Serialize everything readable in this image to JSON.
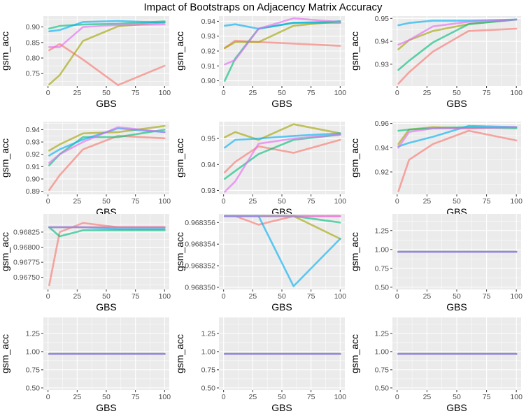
{
  "title": "Impact of Bootstraps on Adjacency Matrix Accuracy",
  "colors": {
    "panel_bg": "#EBEBEB",
    "grid": "#FFFFFF",
    "axis_text": "#4D4D4D",
    "series_red": "#F8766D",
    "series_olive": "#A3A500",
    "series_green": "#00BF7D",
    "series_blue": "#00B0F6",
    "series_purple": "#E76BF3"
  },
  "chart_data": [
    {
      "type": "line",
      "xlabel": "GBS",
      "ylabel": "gsm_acc",
      "xlim": [
        -4,
        104
      ],
      "ylim": [
        0.71,
        0.935
      ],
      "xticks": [
        0,
        25,
        50,
        75,
        100
      ],
      "yticks": [
        0.75,
        0.8,
        0.85,
        0.9
      ],
      "ytick_labels": [
        "0.75",
        "0.80",
        "0.85",
        "0.90"
      ],
      "x": [
        1,
        10,
        30,
        60,
        100
      ],
      "series": [
        {
          "color": "#F8766D",
          "values": [
            0.825,
            0.845,
            0.795,
            0.713,
            0.775
          ]
        },
        {
          "color": "#A3A500",
          "values": [
            0.715,
            0.745,
            0.855,
            0.902,
            0.915
          ]
        },
        {
          "color": "#00BF7D",
          "values": [
            0.895,
            0.903,
            0.908,
            0.91,
            0.918
          ]
        },
        {
          "color": "#00B0F6",
          "values": [
            0.886,
            0.89,
            0.916,
            0.919,
            0.914
          ]
        },
        {
          "color": "#E76BF3",
          "values": [
            0.835,
            0.835,
            0.9,
            0.906,
            0.908
          ]
        }
      ]
    },
    {
      "type": "line",
      "xlabel": "GBS",
      "ylabel": "gsm_acc",
      "xlim": [
        -4,
        104
      ],
      "ylim": [
        0.8965,
        0.9435
      ],
      "xticks": [
        0,
        25,
        50,
        75,
        100
      ],
      "yticks": [
        0.9,
        0.91,
        0.92,
        0.93,
        0.94
      ],
      "ytick_labels": [
        "0.90",
        "0.91",
        "0.92",
        "0.93",
        "0.94"
      ],
      "x": [
        1,
        10,
        30,
        60,
        100
      ],
      "series": [
        {
          "color": "#F8766D",
          "values": [
            0.922,
            0.927,
            0.926,
            0.925,
            0.9235
          ]
        },
        {
          "color": "#A3A500",
          "values": [
            0.922,
            0.926,
            0.926,
            0.937,
            0.94
          ]
        },
        {
          "color": "#00BF7D",
          "values": [
            0.9,
            0.915,
            0.935,
            0.939,
            0.939
          ]
        },
        {
          "color": "#00B0F6",
          "values": [
            0.937,
            0.938,
            0.935,
            0.939,
            0.94
          ]
        },
        {
          "color": "#E76BF3",
          "values": [
            0.911,
            0.914,
            0.935,
            0.942,
            0.9395
          ]
        }
      ]
    },
    {
      "type": "line",
      "xlabel": "GBS",
      "ylabel": "gsm_acc",
      "xlim": [
        -4,
        104
      ],
      "ylim": [
        0.9205,
        0.951
      ],
      "xticks": [
        0,
        25,
        50,
        75,
        100
      ],
      "yticks": [
        0.93,
        0.94,
        0.95
      ],
      "ytick_labels": [
        "0.93",
        "0.94",
        "0.95"
      ],
      "x": [
        1,
        10,
        30,
        60,
        100
      ],
      "series": [
        {
          "color": "#F8766D",
          "values": [
            0.9215,
            0.9265,
            0.9355,
            0.9445,
            0.9455
          ]
        },
        {
          "color": "#A3A500",
          "values": [
            0.9365,
            0.9405,
            0.9445,
            0.9475,
            0.9495
          ]
        },
        {
          "color": "#00BF7D",
          "values": [
            0.9275,
            0.9315,
            0.9395,
            0.9475,
            0.9495
          ]
        },
        {
          "color": "#00B0F6",
          "values": [
            0.947,
            0.948,
            0.949,
            0.949,
            0.9495
          ]
        },
        {
          "color": "#E76BF3",
          "values": [
            0.9385,
            0.9405,
            0.9465,
            0.9485,
            0.9495
          ]
        }
      ]
    },
    {
      "type": "line",
      "xlabel": "GBS",
      "ylabel": "gsm_acc",
      "xlim": [
        -4,
        104
      ],
      "ylim": [
        0.8875,
        0.9465
      ],
      "xticks": [
        0,
        25,
        50,
        75,
        100
      ],
      "yticks": [
        0.89,
        0.9,
        0.91,
        0.92,
        0.93,
        0.94
      ],
      "ytick_labels": [
        "0.89",
        "0.90",
        "0.91",
        "0.92",
        "0.93",
        "0.94"
      ],
      "x": [
        1,
        10,
        30,
        60,
        100
      ],
      "series": [
        {
          "color": "#F8766D",
          "values": [
            0.891,
            0.903,
            0.924,
            0.935,
            0.933
          ]
        },
        {
          "color": "#A3A500",
          "values": [
            0.923,
            0.928,
            0.937,
            0.938,
            0.943
          ]
        },
        {
          "color": "#00BF7D",
          "values": [
            0.911,
            0.92,
            0.934,
            0.934,
            0.94
          ]
        },
        {
          "color": "#00B0F6",
          "values": [
            0.919,
            0.924,
            0.932,
            0.941,
            0.938
          ]
        },
        {
          "color": "#E76BF3",
          "values": [
            0.913,
            0.92,
            0.93,
            0.942,
            0.938
          ]
        }
      ]
    },
    {
      "type": "line",
      "xlabel": "GBS",
      "ylabel": "gsm_acc",
      "xlim": [
        -4,
        104
      ],
      "ylim": [
        0.9285,
        0.9565
      ],
      "xticks": [
        0,
        25,
        50,
        75,
        100
      ],
      "yticks": [
        0.93,
        0.94,
        0.95
      ],
      "ytick_labels": [
        "0.93",
        "0.94",
        "0.95"
      ],
      "x": [
        1,
        10,
        30,
        60,
        100
      ],
      "series": [
        {
          "color": "#F8766D",
          "values": [
            0.937,
            0.941,
            0.947,
            0.9445,
            0.9495
          ]
        },
        {
          "color": "#A3A500",
          "values": [
            0.9505,
            0.9525,
            0.9495,
            0.9555,
            0.952
          ]
        },
        {
          "color": "#00BF7D",
          "values": [
            0.9345,
            0.9375,
            0.944,
            0.9495,
            0.9515
          ]
        },
        {
          "color": "#00B0F6",
          "values": [
            0.9465,
            0.9495,
            0.95,
            0.951,
            0.952
          ]
        },
        {
          "color": "#E76BF3",
          "values": [
            0.9295,
            0.9335,
            0.948,
            0.95,
            0.9515
          ]
        }
      ]
    },
    {
      "type": "line",
      "xlabel": "GBS",
      "ylabel": "gsm_acc",
      "xlim": [
        -4,
        104
      ],
      "ylim": [
        0.9015,
        0.9615
      ],
      "xticks": [
        0,
        25,
        50,
        75,
        100
      ],
      "yticks": [
        0.92,
        0.94,
        0.96
      ],
      "ytick_labels": [
        "0.92",
        "0.94",
        "0.96"
      ],
      "x": [
        1,
        10,
        30,
        60,
        100
      ],
      "series": [
        {
          "color": "#F8766D",
          "values": [
            0.904,
            0.93,
            0.943,
            0.954,
            0.946
          ]
        },
        {
          "color": "#A3A500",
          "values": [
            0.943,
            0.955,
            0.957,
            0.956,
            0.957
          ]
        },
        {
          "color": "#00BF7D",
          "values": [
            0.954,
            0.955,
            0.956,
            0.957,
            0.956
          ]
        },
        {
          "color": "#00B0F6",
          "values": [
            0.941,
            0.944,
            0.949,
            0.958,
            0.957
          ]
        },
        {
          "color": "#E76BF3",
          "values": [
            0.94,
            0.953,
            0.956,
            0.956,
            0.957
          ]
        }
      ]
    },
    {
      "type": "line",
      "xlabel": "GBS",
      "ylabel": "gsm_acc",
      "xlim": [
        -4,
        104
      ],
      "ylim": [
        0.9673,
        0.96855
      ],
      "xticks": [
        0,
        25,
        50,
        75,
        100
      ],
      "yticks": [
        0.9675,
        0.96775,
        0.968,
        0.96825
      ],
      "ytick_labels": [
        "0.96750",
        "0.96775",
        "0.96800",
        "0.96825"
      ],
      "x": [
        1,
        10,
        30,
        60,
        100
      ],
      "series": [
        {
          "color": "#F8766D",
          "values": [
            0.96737,
            0.96825,
            0.9684,
            0.96833,
            0.96833
          ]
        },
        {
          "color": "#A3A500",
          "values": [
            0.96833,
            0.96833,
            0.96833,
            0.96833,
            0.96833
          ]
        },
        {
          "color": "#00BF7D",
          "values": [
            0.96833,
            0.96818,
            0.96828,
            0.96828,
            0.96828
          ]
        },
        {
          "color": "#00B0F6",
          "values": [
            0.96833,
            0.96833,
            0.96833,
            0.9683,
            0.9683
          ]
        },
        {
          "color": "#E76BF3",
          "values": [
            0.96833,
            0.96833,
            0.96833,
            0.96833,
            0.96833
          ]
        }
      ]
    },
    {
      "type": "line",
      "xlabel": "GBS",
      "ylabel": "gsm_acc",
      "xlim": [
        -4,
        104
      ],
      "ylim": [
        0.9683498,
        0.9683568
      ],
      "xticks": [
        0,
        25,
        50,
        75,
        100
      ],
      "yticks": [
        0.96835,
        0.968352,
        0.968354,
        0.968356
      ],
      "ytick_labels": [
        "0.968350",
        "0.968352",
        "0.968354",
        "0.968356"
      ],
      "x": [
        1,
        10,
        30,
        60,
        100
      ],
      "series": [
        {
          "color": "#F8766D",
          "values": [
            0.9683566,
            0.9683566,
            0.9683558,
            0.9683566,
            0.9683566
          ]
        },
        {
          "color": "#A3A500",
          "values": [
            0.9683566,
            0.9683566,
            0.9683566,
            0.9683566,
            0.9683545
          ]
        },
        {
          "color": "#00BF7D",
          "values": [
            0.9683566,
            0.9683566,
            0.9683566,
            0.9683566,
            0.968356
          ]
        },
        {
          "color": "#00B0F6",
          "values": [
            0.9683566,
            0.9683566,
            0.9683566,
            0.9683501,
            0.9683545
          ]
        },
        {
          "color": "#E76BF3",
          "values": [
            0.9683566,
            0.9683566,
            0.9683566,
            0.9683566,
            0.9683566
          ]
        }
      ]
    },
    {
      "type": "line",
      "xlabel": "GBS",
      "ylabel": "gsm_acc",
      "xlim": [
        -4,
        104
      ],
      "ylim": [
        0.47,
        1.47
      ],
      "xticks": [
        0,
        25,
        50,
        75,
        100
      ],
      "yticks": [
        0.5,
        0.75,
        1.0,
        1.25
      ],
      "ytick_labels": [
        "0.50",
        "0.75",
        "1.00",
        "1.25"
      ],
      "x": [
        1,
        10,
        30,
        60,
        100
      ],
      "series": [
        {
          "color": "#F8766D",
          "values": [
            0.968,
            0.968,
            0.968,
            0.968,
            0.968
          ]
        },
        {
          "color": "#A3A500",
          "values": [
            0.968,
            0.968,
            0.968,
            0.968,
            0.968
          ]
        },
        {
          "color": "#00BF7D",
          "values": [
            0.968,
            0.968,
            0.968,
            0.968,
            0.968
          ]
        },
        {
          "color": "#00B0F6",
          "values": [
            0.968,
            0.968,
            0.968,
            0.968,
            0.968
          ]
        },
        {
          "color": "#E76BF3",
          "values": [
            0.968,
            0.968,
            0.968,
            0.968,
            0.968
          ]
        }
      ]
    },
    {
      "type": "line",
      "xlabel": "GBS",
      "ylabel": "gsm_acc",
      "xlim": [
        -4,
        104
      ],
      "ylim": [
        0.47,
        1.47
      ],
      "xticks": [
        0,
        25,
        50,
        75,
        100
      ],
      "yticks": [
        0.5,
        0.75,
        1.0,
        1.25
      ],
      "ytick_labels": [
        "0.50",
        "0.75",
        "1.00",
        "1.25"
      ],
      "x": [
        1,
        10,
        30,
        60,
        100
      ],
      "series": [
        {
          "color": "#F8766D",
          "values": [
            0.968,
            0.968,
            0.968,
            0.968,
            0.968
          ]
        },
        {
          "color": "#A3A500",
          "values": [
            0.968,
            0.968,
            0.968,
            0.968,
            0.968
          ]
        },
        {
          "color": "#00BF7D",
          "values": [
            0.968,
            0.968,
            0.968,
            0.968,
            0.968
          ]
        },
        {
          "color": "#00B0F6",
          "values": [
            0.968,
            0.968,
            0.968,
            0.968,
            0.968
          ]
        },
        {
          "color": "#E76BF3",
          "values": [
            0.968,
            0.968,
            0.968,
            0.968,
            0.968
          ]
        }
      ]
    },
    {
      "type": "line",
      "xlabel": "GBS",
      "ylabel": "gsm_acc",
      "xlim": [
        -4,
        104
      ],
      "ylim": [
        0.47,
        1.47
      ],
      "xticks": [
        0,
        25,
        50,
        75,
        100
      ],
      "yticks": [
        0.5,
        0.75,
        1.0,
        1.25
      ],
      "ytick_labels": [
        "0.50",
        "0.75",
        "1.00",
        "1.25"
      ],
      "x": [
        1,
        10,
        30,
        60,
        100
      ],
      "series": [
        {
          "color": "#F8766D",
          "values": [
            0.968,
            0.968,
            0.968,
            0.968,
            0.968
          ]
        },
        {
          "color": "#A3A500",
          "values": [
            0.968,
            0.968,
            0.968,
            0.968,
            0.968
          ]
        },
        {
          "color": "#00BF7D",
          "values": [
            0.968,
            0.968,
            0.968,
            0.968,
            0.968
          ]
        },
        {
          "color": "#00B0F6",
          "values": [
            0.968,
            0.968,
            0.968,
            0.968,
            0.968
          ]
        },
        {
          "color": "#E76BF3",
          "values": [
            0.968,
            0.968,
            0.968,
            0.968,
            0.968
          ]
        }
      ]
    },
    {
      "type": "line",
      "xlabel": "GBS",
      "ylabel": "gsm_acc",
      "xlim": [
        -4,
        104
      ],
      "ylim": [
        0.47,
        1.47
      ],
      "xticks": [
        0,
        25,
        50,
        75,
        100
      ],
      "yticks": [
        0.5,
        0.75,
        1.0,
        1.25
      ],
      "ytick_labels": [
        "0.50",
        "0.75",
        "1.00",
        "1.25"
      ],
      "x": [
        1,
        10,
        30,
        60,
        100
      ],
      "series": [
        {
          "color": "#F8766D",
          "values": [
            0.968,
            0.968,
            0.968,
            0.968,
            0.968
          ]
        },
        {
          "color": "#A3A500",
          "values": [
            0.968,
            0.968,
            0.968,
            0.968,
            0.968
          ]
        },
        {
          "color": "#00BF7D",
          "values": [
            0.968,
            0.968,
            0.968,
            0.968,
            0.968
          ]
        },
        {
          "color": "#00B0F6",
          "values": [
            0.968,
            0.968,
            0.968,
            0.968,
            0.968
          ]
        },
        {
          "color": "#E76BF3",
          "values": [
            0.968,
            0.968,
            0.968,
            0.968,
            0.968
          ]
        }
      ]
    }
  ]
}
